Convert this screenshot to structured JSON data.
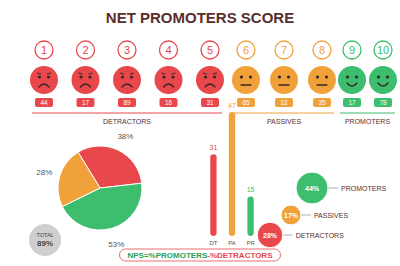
{
  "chart_data": [
    {
      "type": "rating_scale",
      "title": "NET PROMOTERS SCORE",
      "series": [
        {
          "name": "DETRACTORS",
          "color": "#e8474c",
          "marker": "sad",
          "categories": [
            1,
            2,
            3,
            4,
            5
          ],
          "values": [
            44,
            17,
            89,
            16,
            31
          ]
        },
        {
          "name": "PASSIVES",
          "color": "#f0a13a",
          "marker": "neutral",
          "categories": [
            6,
            7,
            8
          ],
          "values": [
            65,
            12,
            35
          ]
        },
        {
          "name": "PROMOTERS",
          "color": "#3dbd6e",
          "marker": "happy",
          "categories": [
            9,
            10
          ],
          "values": [
            17,
            78
          ]
        }
      ],
      "data_labels": true,
      "annotations": [
        "NPS=%PROMOTERS",
        "-%DETRACTORS"
      ]
    },
    {
      "type": "pie",
      "values": [
        38,
        53,
        28
      ],
      "value_labels": [
        "38%",
        "53%",
        "28%"
      ],
      "colors": [
        "#e8474c",
        "#3dbd6e",
        "#f0a13a"
      ],
      "data_labels": true,
      "total": {
        "label": "TOTAL",
        "value": 89,
        "value_label": "89%"
      }
    },
    {
      "type": "bar",
      "categories": [
        "DT",
        "PA",
        "PR"
      ],
      "values": [
        31,
        47,
        15
      ],
      "colors": [
        "#e8474c",
        "#f0a13a",
        "#3dbd6e"
      ],
      "data_labels": true,
      "tick_labels": "x"
    },
    {
      "type": "bubble",
      "categories": [
        "PROMOTERS",
        "PASSIVES",
        "DETRACTORS"
      ],
      "values": [
        44,
        17,
        28
      ],
      "value_labels": [
        "44%",
        "17%",
        "28%"
      ],
      "colors": [
        "#3dbd6e",
        "#f0a13a",
        "#e8474c"
      ],
      "data_labels": true
    }
  ]
}
